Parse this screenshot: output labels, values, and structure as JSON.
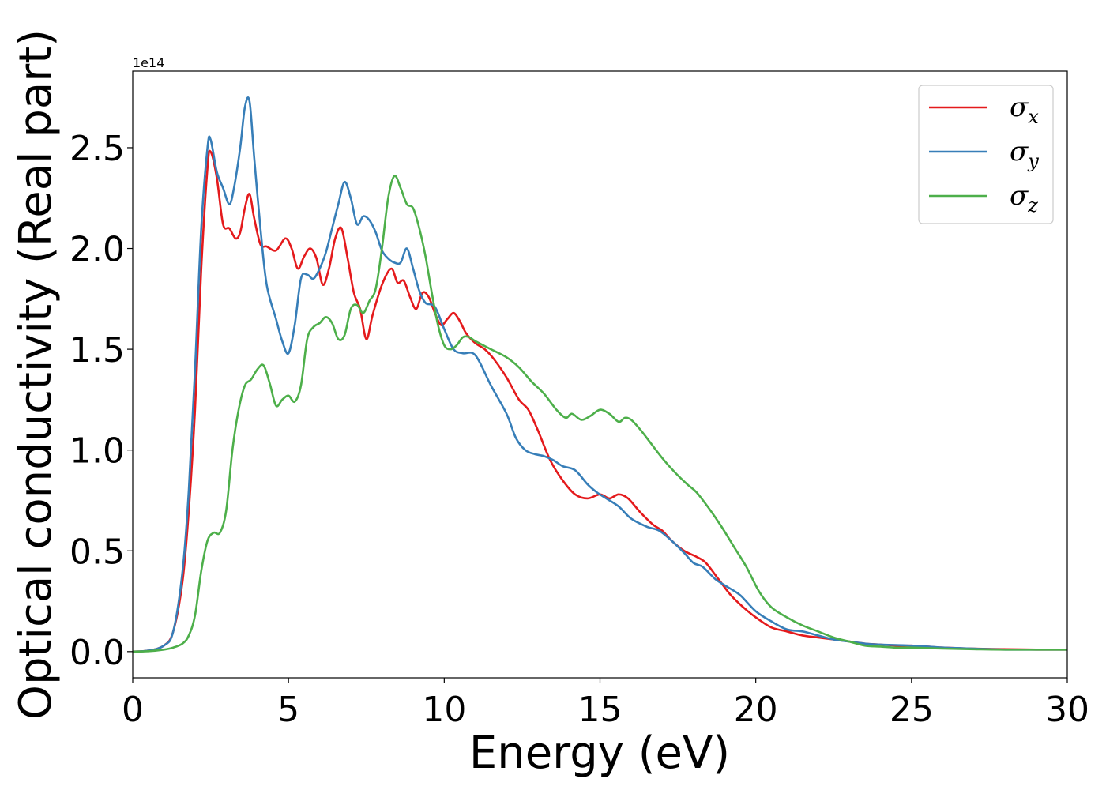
{
  "chart_data": {
    "type": "line",
    "title": "",
    "xlabel": "Energy (eV)",
    "ylabel": "Optical conductivity (Real part)",
    "y_offset_label": "1e14",
    "y_scale": 100000000000000.0,
    "xlim": [
      0,
      30
    ],
    "ylim": [
      -0.13,
      2.88
    ],
    "x_ticks": [
      0,
      5,
      10,
      15,
      20,
      25,
      30
    ],
    "y_ticks": [
      0.0,
      0.5,
      1.0,
      1.5,
      2.0,
      2.5
    ],
    "x_tick_labels": [
      "0",
      "5",
      "10",
      "15",
      "20",
      "25",
      "30"
    ],
    "y_tick_labels": [
      "0.0",
      "0.5",
      "1.0",
      "1.5",
      "2.0",
      "2.5"
    ],
    "grid": false,
    "legend_position": "top-right",
    "series": [
      {
        "name": "σx",
        "legend_symbol": "σ",
        "legend_subscript": "x",
        "color": "#e41a1c",
        "x": [
          0,
          0.5,
          1,
          1.3,
          1.6,
          1.8,
          2.0,
          2.2,
          2.4,
          2.5,
          2.7,
          2.9,
          3.1,
          3.3,
          3.45,
          3.6,
          3.75,
          3.9,
          4.1,
          4.3,
          4.6,
          4.9,
          5.1,
          5.3,
          5.5,
          5.7,
          5.9,
          6.1,
          6.3,
          6.5,
          6.7,
          6.9,
          7.1,
          7.3,
          7.5,
          7.7,
          8.0,
          8.3,
          8.5,
          8.7,
          8.9,
          9.1,
          9.3,
          9.5,
          9.7,
          9.9,
          10.1,
          10.3,
          10.5,
          10.7,
          11.0,
          11.3,
          11.6,
          12.0,
          12.4,
          12.7,
          13.0,
          13.4,
          13.8,
          14.2,
          14.6,
          15.0,
          15.3,
          15.6,
          15.9,
          16.3,
          16.7,
          17.0,
          17.3,
          17.7,
          18.1,
          18.4,
          18.8,
          19.2,
          19.6,
          20.0,
          20.5,
          21.0,
          21.5,
          22.0,
          22.5,
          23.0,
          23.5,
          24.0,
          24.5,
          25.0,
          25.5,
          26.0,
          27.0,
          28.0,
          29.0,
          30.0
        ],
        "y": [
          0.0,
          0.005,
          0.03,
          0.1,
          0.35,
          0.7,
          1.2,
          1.9,
          2.4,
          2.48,
          2.35,
          2.12,
          2.1,
          2.05,
          2.08,
          2.2,
          2.27,
          2.15,
          2.02,
          2.01,
          1.99,
          2.05,
          2.0,
          1.9,
          1.96,
          2.0,
          1.95,
          1.82,
          1.9,
          2.05,
          2.1,
          1.95,
          1.78,
          1.7,
          1.55,
          1.67,
          1.82,
          1.9,
          1.83,
          1.84,
          1.76,
          1.7,
          1.78,
          1.76,
          1.68,
          1.62,
          1.65,
          1.68,
          1.64,
          1.58,
          1.53,
          1.5,
          1.45,
          1.36,
          1.25,
          1.2,
          1.1,
          0.95,
          0.85,
          0.78,
          0.76,
          0.78,
          0.76,
          0.78,
          0.76,
          0.69,
          0.63,
          0.6,
          0.55,
          0.5,
          0.47,
          0.44,
          0.36,
          0.28,
          0.22,
          0.17,
          0.12,
          0.1,
          0.08,
          0.07,
          0.06,
          0.05,
          0.04,
          0.035,
          0.03,
          0.03,
          0.025,
          0.02,
          0.015,
          0.012,
          0.01,
          0.01
        ]
      },
      {
        "name": "σy",
        "legend_symbol": "σ",
        "legend_subscript": "y",
        "color": "#377eb8",
        "x": [
          0,
          0.5,
          1,
          1.3,
          1.6,
          1.8,
          2.0,
          2.2,
          2.4,
          2.5,
          2.7,
          2.9,
          3.1,
          3.25,
          3.45,
          3.6,
          3.75,
          3.9,
          4.1,
          4.3,
          4.6,
          4.8,
          5.0,
          5.2,
          5.4,
          5.6,
          5.8,
          6.0,
          6.2,
          6.4,
          6.6,
          6.8,
          7.0,
          7.2,
          7.4,
          7.6,
          7.8,
          8.0,
          8.2,
          8.4,
          8.6,
          8.8,
          9.0,
          9.2,
          9.4,
          9.7,
          10.0,
          10.3,
          10.6,
          11.0,
          11.5,
          12.0,
          12.3,
          12.6,
          12.9,
          13.2,
          13.5,
          13.8,
          14.2,
          14.6,
          14.9,
          15.2,
          15.6,
          16.0,
          16.5,
          16.9,
          17.3,
          17.7,
          18.0,
          18.3,
          18.7,
          19.1,
          19.5,
          20.0,
          20.5,
          21.0,
          21.5,
          22.0,
          22.5,
          23.0,
          23.5,
          24.0,
          25.0,
          26.0,
          27.0,
          28.0,
          30.0
        ],
        "y": [
          0.0,
          0.005,
          0.03,
          0.1,
          0.4,
          0.8,
          1.4,
          2.1,
          2.5,
          2.54,
          2.38,
          2.3,
          2.22,
          2.3,
          2.5,
          2.7,
          2.73,
          2.45,
          2.1,
          1.82,
          1.65,
          1.54,
          1.48,
          1.62,
          1.85,
          1.87,
          1.85,
          1.9,
          1.98,
          2.1,
          2.22,
          2.33,
          2.25,
          2.12,
          2.16,
          2.14,
          2.08,
          1.99,
          1.95,
          1.93,
          1.93,
          2.0,
          1.9,
          1.79,
          1.73,
          1.71,
          1.6,
          1.5,
          1.48,
          1.47,
          1.32,
          1.18,
          1.06,
          1.0,
          0.98,
          0.97,
          0.95,
          0.92,
          0.9,
          0.83,
          0.79,
          0.76,
          0.72,
          0.66,
          0.62,
          0.6,
          0.55,
          0.49,
          0.44,
          0.42,
          0.36,
          0.32,
          0.28,
          0.2,
          0.15,
          0.11,
          0.1,
          0.08,
          0.06,
          0.05,
          0.04,
          0.035,
          0.03,
          0.02,
          0.015,
          0.01,
          0.01
        ]
      },
      {
        "name": "σz",
        "legend_symbol": "σ",
        "legend_subscript": "z",
        "color": "#4daf4a",
        "x": [
          0,
          0.5,
          1,
          1.3,
          1.6,
          1.8,
          2.0,
          2.2,
          2.4,
          2.6,
          2.8,
          3.0,
          3.2,
          3.4,
          3.6,
          3.8,
          4.0,
          4.2,
          4.4,
          4.6,
          4.8,
          5.0,
          5.2,
          5.4,
          5.6,
          5.8,
          6.0,
          6.2,
          6.4,
          6.6,
          6.8,
          7.0,
          7.2,
          7.4,
          7.6,
          7.8,
          8.0,
          8.2,
          8.4,
          8.6,
          8.8,
          9.0,
          9.2,
          9.4,
          9.6,
          9.8,
          10.0,
          10.2,
          10.4,
          10.6,
          10.8,
          11.0,
          11.5,
          12.0,
          12.4,
          12.8,
          13.2,
          13.6,
          13.9,
          14.1,
          14.4,
          14.7,
          15.0,
          15.3,
          15.6,
          15.8,
          16.0,
          16.3,
          16.6,
          17.0,
          17.4,
          17.8,
          18.1,
          18.5,
          18.9,
          19.3,
          19.7,
          20.1,
          20.5,
          21.0,
          21.5,
          22.0,
          22.5,
          23.0,
          23.5,
          24.0,
          24.5,
          25.0,
          26.0,
          27.0,
          28.0,
          30.0
        ],
        "y": [
          0.0,
          0.002,
          0.01,
          0.02,
          0.04,
          0.08,
          0.18,
          0.4,
          0.55,
          0.59,
          0.59,
          0.7,
          1.0,
          1.2,
          1.32,
          1.35,
          1.4,
          1.42,
          1.33,
          1.22,
          1.25,
          1.27,
          1.24,
          1.32,
          1.55,
          1.61,
          1.63,
          1.66,
          1.63,
          1.55,
          1.57,
          1.7,
          1.72,
          1.68,
          1.74,
          1.8,
          2.0,
          2.25,
          2.36,
          2.3,
          2.22,
          2.2,
          2.1,
          1.96,
          1.78,
          1.62,
          1.52,
          1.5,
          1.52,
          1.56,
          1.56,
          1.54,
          1.5,
          1.46,
          1.41,
          1.34,
          1.28,
          1.2,
          1.16,
          1.18,
          1.15,
          1.17,
          1.2,
          1.18,
          1.14,
          1.16,
          1.15,
          1.1,
          1.04,
          0.96,
          0.89,
          0.83,
          0.79,
          0.71,
          0.62,
          0.52,
          0.42,
          0.3,
          0.22,
          0.17,
          0.13,
          0.1,
          0.07,
          0.05,
          0.03,
          0.025,
          0.02,
          0.02,
          0.015,
          0.012,
          0.01,
          0.01
        ]
      }
    ]
  }
}
